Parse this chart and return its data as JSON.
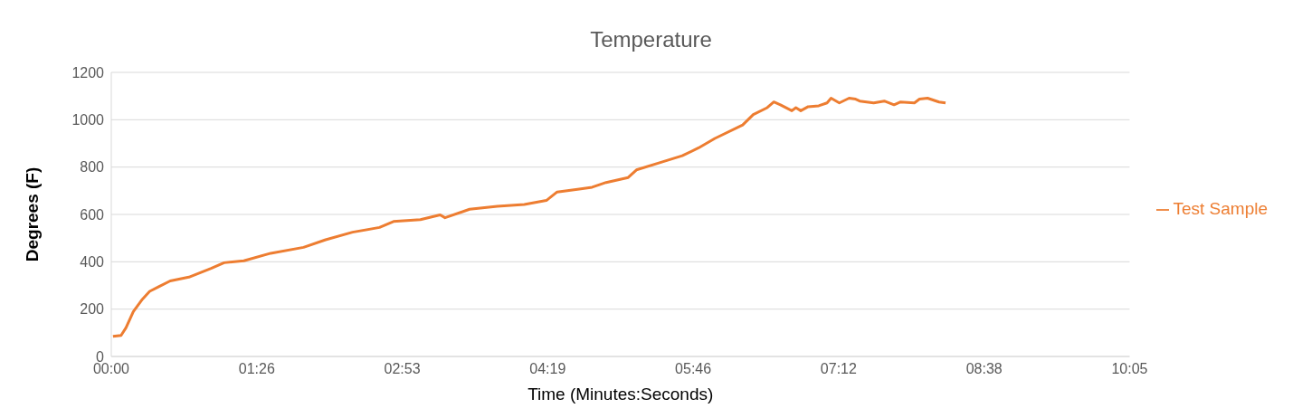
{
  "chart_data": {
    "type": "line",
    "title": "Temperature",
    "xlabel": "Time (Minutes:Seconds)",
    "ylabel": "Degrees (F)",
    "x": [
      1,
      5.8,
      8.7,
      13.1,
      18.5,
      22.8,
      28.2,
      35,
      46.1,
      59.3,
      67,
      78.7,
      94.7,
      114.2,
      127.3,
      143.3,
      159.3,
      167.6,
      183.6,
      195.3,
      198.2,
      212.8,
      229.3,
      245.3,
      258.4,
      264.8,
      277.9,
      285.6,
      293.9,
      307,
      311.9,
      326.5,
      339.1,
      348.8,
      358.5,
      375,
      381.3,
      389.6,
      393.5,
      397.4,
      404.2,
      406.6,
      409.5,
      413.9,
      420.2,
      425.1,
      427.5,
      432.4,
      438.2,
      442.1,
      444.5,
      452.8,
      459.1,
      464.9,
      468.8,
      477,
      480,
      484.8,
      491.6,
      495.5
    ],
    "series": [
      {
        "name": "Test Sample",
        "color": "#ed7d31",
        "values": [
          85,
          89,
          121,
          190,
          242,
          275,
          295,
          319,
          335,
          372,
          396,
          404,
          436,
          461,
          493,
          525,
          545,
          570,
          578,
          598,
          586,
          622,
          634,
          642,
          659,
          695,
          707,
          715,
          735,
          756,
          788,
          820,
          848,
          881,
          921,
          978,
          1022,
          1051,
          1075,
          1063,
          1038,
          1051,
          1038,
          1055,
          1059,
          1071,
          1091,
          1071,
          1091,
          1087,
          1079,
          1071,
          1079,
          1063,
          1075,
          1071,
          1087,
          1091,
          1075,
          1071
        ]
      }
    ],
    "xlim": [
      0,
      604.8
    ],
    "xticks": [
      {
        "value": 0,
        "label": "00:00"
      },
      {
        "value": 86.4,
        "label": "01:26"
      },
      {
        "value": 172.8,
        "label": "02:53"
      },
      {
        "value": 259.2,
        "label": "04:19"
      },
      {
        "value": 345.6,
        "label": "05:46"
      },
      {
        "value": 432,
        "label": "07:12"
      },
      {
        "value": 518.4,
        "label": "08:38"
      },
      {
        "value": 604.8,
        "label": "10:05"
      }
    ],
    "ylim": [
      0,
      1200
    ],
    "yticks": [
      0,
      200,
      400,
      600,
      800,
      1000,
      1200
    ],
    "grid": "y",
    "legend": "right",
    "marker": "none",
    "line_style": "solid"
  }
}
